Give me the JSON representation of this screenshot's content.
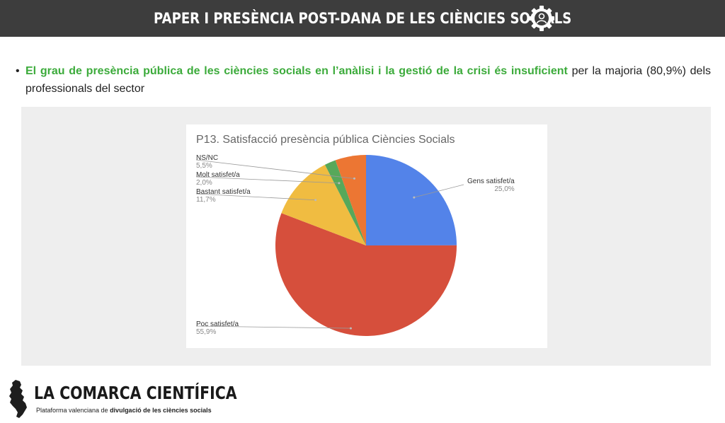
{
  "header": {
    "title": "PAPER I PRESÈNCIA POST-DANA DE LES CIÈNCIES SOCIALS",
    "icon": "user-gear-icon",
    "background": "#3d3d3d"
  },
  "bullet": {
    "highlight": "El grau de presència pública de les ciències socials en l’anàlisi i la gestió de la crisi és insuficient",
    "rest": "per la majoria (80,9%) dels professionals del sector",
    "highlight_color": "#3cab3b"
  },
  "chart_data": {
    "type": "pie",
    "title": "P13. Satisfacció presència pública Ciències Socials",
    "slices": [
      {
        "label": "Gens satisfet/a",
        "value": 25.0,
        "display": "25,0%",
        "color": "#5383e9"
      },
      {
        "label": "Poc satisfet/a",
        "value": 55.9,
        "display": "55,9%",
        "color": "#d64f3c"
      },
      {
        "label": "Bastant satisfet/a",
        "value": 11.7,
        "display": "11,7%",
        "color": "#f0bc41"
      },
      {
        "label": "Molt satisfet/a",
        "value": 2.0,
        "display": "2,0%",
        "color": "#57a85a"
      },
      {
        "label": "NS/NC",
        "value": 5.5,
        "display": "5,5%",
        "color": "#ec7633"
      }
    ]
  },
  "footer": {
    "brand": "LA COMARCA CIENTÍFICA",
    "tagline_pre": "Plataforma valenciana de ",
    "tagline_bold": "divulgació de les ciències socials",
    "logo_icon": "valencia-map-icon"
  }
}
